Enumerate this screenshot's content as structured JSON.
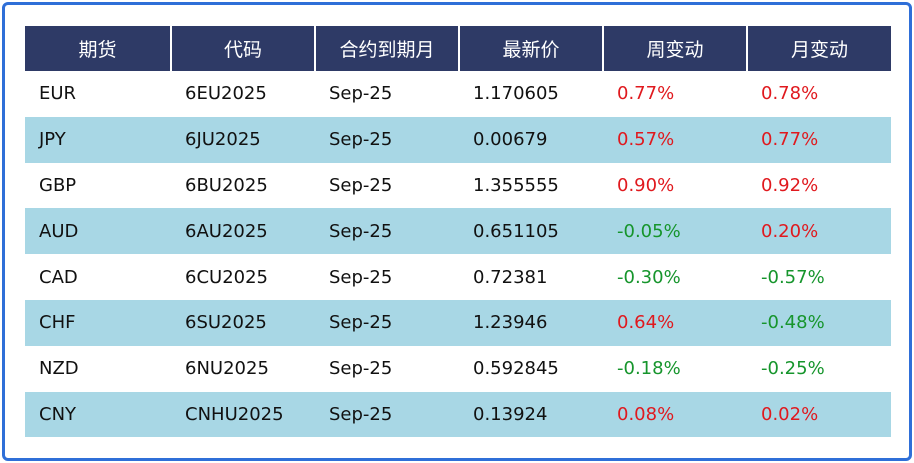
{
  "table": {
    "header": [
      "期货",
      "代码",
      "合约到期月",
      "最新价",
      "周变动",
      "月变动"
    ],
    "rows": [
      [
        "EUR",
        "6EU2025",
        "Sep-25",
        "1.170605",
        "0.77%",
        "0.78%"
      ],
      [
        "JPY",
        "6JU2025",
        "Sep-25",
        "0.00679",
        "0.57%",
        "0.77%"
      ],
      [
        "GBP",
        "6BU2025",
        "Sep-25",
        "1.355555",
        "0.90%",
        "0.92%"
      ],
      [
        "AUD",
        "6AU2025",
        "Sep-25",
        "0.651105",
        "-0.05%",
        "0.20%"
      ],
      [
        "CAD",
        "6CU2025",
        "Sep-25",
        "0.72381",
        "-0.30%",
        "-0.57%"
      ],
      [
        "CHF",
        "6SU2025",
        "Sep-25",
        "1.23946",
        "0.64%",
        "-0.48%"
      ],
      [
        "NZD",
        "6NU2025",
        "Sep-25",
        "0.592845",
        "-0.18%",
        "-0.25%"
      ],
      [
        "CNY",
        "CNHU2025",
        "Sep-25",
        "0.13924",
        "0.08%",
        "0.02%"
      ]
    ],
    "positive_color": "#e0191e",
    "negative_color": "#16952c"
  }
}
